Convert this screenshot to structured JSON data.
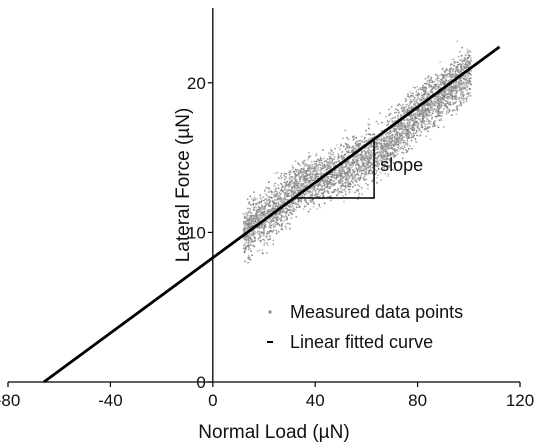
{
  "chart_data": {
    "type": "scatter",
    "title": "",
    "xlabel": "Normal Load (µN)",
    "ylabel": "Lateral Force (µN)",
    "xlim": [
      -80,
      120
    ],
    "ylim": [
      0,
      25
    ],
    "xticks": [
      -80,
      -40,
      0,
      40,
      80,
      120
    ],
    "yticks": [
      0,
      10,
      20
    ],
    "grid": false,
    "legend_position": "bottom-right",
    "legend": [
      {
        "label": "Measured data points",
        "marker": "dot"
      },
      {
        "label": "Linear fitted curve",
        "marker": "dash"
      }
    ],
    "series": [
      {
        "name": "Measured data points",
        "kind": "scatter-band",
        "color": "#9a9a9a",
        "x_range": [
          12,
          101
        ],
        "center_line": [
          [
            12,
            10.0
          ],
          [
            25,
            11.6
          ],
          [
            35,
            13.3
          ],
          [
            50,
            14.1
          ],
          [
            65,
            15.3
          ],
          [
            80,
            18.0
          ],
          [
            101,
            20.8
          ]
        ],
        "spread": 1.4,
        "count": 4500
      },
      {
        "name": "Linear fitted curve",
        "kind": "line",
        "color": "#000000",
        "x": [
          -66,
          112
        ],
        "y": [
          0,
          22.4
        ]
      }
    ],
    "annotations": [
      {
        "text": "slope",
        "triangle": {
          "x1": 32,
          "x2": 63,
          "y_base": 12.3,
          "y_top": 16.2
        }
      }
    ]
  }
}
